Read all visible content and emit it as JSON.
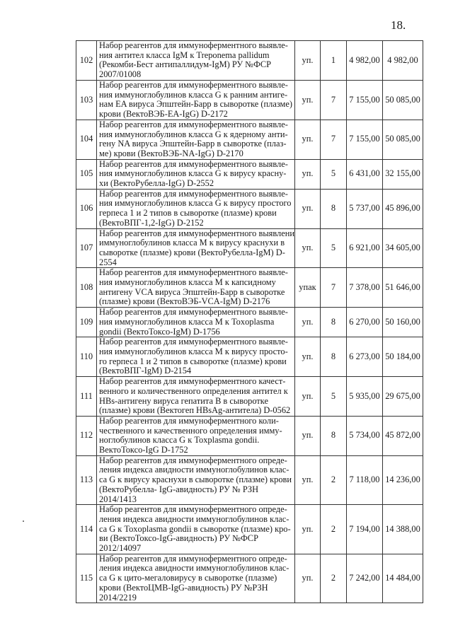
{
  "page_number": "18.",
  "rows": [
    {
      "no": "102",
      "lines": [
        "Набор реагентов для иммуноферментного выявле-",
        "ния антител класса IgM к Treponema pallidum",
        "(Рекомби-Бест антипаллидум-IgM) РУ №ФСР",
        "2007/01008"
      ],
      "unit": "уп.",
      "qty": "1",
      "price": "4 982,00",
      "total": "4 982,00"
    },
    {
      "no": "103",
      "lines": [
        "Набор реагентов для иммуноферментного выявле-",
        "ния иммуноглобулинов класса G  к ранним антиге-",
        "нам EA вируса Эпштейн-Барр в сыворотке (плазме)",
        "крови (ВектоВЭБ-EA-IgG) D-2172"
      ],
      "unit": "уп.",
      "qty": "7",
      "price": "7 155,00",
      "total": "50 085,00"
    },
    {
      "no": "104",
      "lines": [
        "Набор реагентов для иммуноферментного выявле-",
        "ния иммуноглобулинов класса G  к ядерному анти-",
        "гену NA вируса Эпштейн-Барр в сыворотке (плаз-",
        "ме) крови  (ВектоВЭБ-NA-IgG) D-2170"
      ],
      "unit": "уп.",
      "qty": "7",
      "price": "7 155,00",
      "total": "50 085,00"
    },
    {
      "no": "105",
      "lines": [
        "Набор реагентов для иммуноферментного выявле-",
        "ния иммуноглобулинов класса G к вирусу красну-",
        "хи (ВектоРубелла-IgG) D-2552"
      ],
      "unit": "уп.",
      "qty": "5",
      "price": "6 431,00",
      "total": "32 155,00"
    },
    {
      "no": "106",
      "lines": [
        "Набор реагентов для иммуноферментного выявле-",
        "ния иммуноглобулинов класса G к вирусу простого",
        "герпеса 1 и 2 типов в сыворотке (плазме) крови",
        "(ВектоВПГ-1,2-IgG) D-2152"
      ],
      "unit": "уп.",
      "qty": "8",
      "price": "5 737,00",
      "total": "45 896,00"
    },
    {
      "no": "107",
      "lines": [
        "Набор реагентов для иммуноферментного выявлени",
        "иммуноглобулинов класса М к вирусу краснухи в",
        "сыворотке (плазме) крови (ВектоРубелла-IgM) D-",
        "2554"
      ],
      "unit": "уп.",
      "qty": "5",
      "price": "6 921,00",
      "total": "34 605,00"
    },
    {
      "no": "108",
      "lines": [
        "Набор реагентов для иммуноферментного выявле-",
        "ния иммуноглобулинов класса М к капсидному",
        "антигену VCA вируса Эпштейн-Барр в сыворотке",
        "(плазме) крови  (ВектоВЭБ-VCA-IgM) D-2176"
      ],
      "unit": "упак",
      "qty": "7",
      "price": "7 378,00",
      "total": "51 646,00"
    },
    {
      "no": "109",
      "lines": [
        "Набор реагентов для иммуноферментного выявле-",
        "ния иммуноглобулинов класса М к Toxoplasma",
        "gondii (ВектоТоксо-IgM) D-1756"
      ],
      "unit": "уп.",
      "qty": "8",
      "price": "6 270,00",
      "total": "50 160,00"
    },
    {
      "no": "110",
      "lines": [
        "Набор реагентов для иммуноферментного выявле-",
        "ния иммуноглобулинов класса М к вирусу просто-",
        "го герпеса 1 и 2 типов в сыворотке (плазме) крови",
        "(ВектоВПГ-IgM) D-2154"
      ],
      "unit": "уп.",
      "qty": "8",
      "price": "6 273,00",
      "total": "50 184,00"
    },
    {
      "no": "111",
      "lines": [
        "Набор реагентов для иммуноферментного качест-",
        "венного и количественного определения антител к",
        "HBs-антигену вируса гепатита В в сыворотке",
        "(плазме) крови (Вектогеп HBsAg-антитела) D-0562"
      ],
      "unit": "уп.",
      "qty": "5",
      "price": "5 935,00",
      "total": "29 675,00"
    },
    {
      "no": "112",
      "lines": [
        "Набор реагентов для иммуноферментного коли-",
        "чественного и качественного определения имму-",
        "ноглобулинов класса G к Toxplasma gondii.",
        "ВектоТоксо-IgG D-1752"
      ],
      "unit": "уп.",
      "qty": "8",
      "price": "5 734,00",
      "total": "45 872,00"
    },
    {
      "no": "113",
      "lines": [
        "Набор реагентов для иммуноферментного опреде-",
        "ления индекса авидности  иммуноглобулинов клас-",
        "са G к вирусу краснухи в сыворотке (плазме) крови",
        "(ВектоРубелла- IgG-авидность) РУ № РЗН",
        "2014/1413"
      ],
      "unit": "уп.",
      "qty": "2",
      "price": "7 118,00",
      "total": "14 236,00"
    },
    {
      "no": "114",
      "lines": [
        "Набор реагентов для иммуноферментного опреде-",
        "ления индекса авидности иммуноглобулинов клас-",
        "са G к Toxoplasma gondii в сыворотке (плазме) кро-",
        "ви (ВектоТоксо-IgG-авидность) РУ №ФСР",
        "2012/14097"
      ],
      "unit": "уп.",
      "qty": "2",
      "price": "7 194,00",
      "total": "14 388,00"
    },
    {
      "no": "115",
      "lines": [
        "Набор реагентов для иммуноферментного опреде-",
        "ления индекса авидности иммуноглобулинов клас-",
        "са G к цито-мегаловирусу в сыворотке (плазме)",
        "крови (ВектоЦМВ-IgG-авидность) РУ №РЗН",
        "2014/2219"
      ],
      "unit": "уп.",
      "qty": "2",
      "price": "7 242,00",
      "total": "14 484,00"
    }
  ]
}
